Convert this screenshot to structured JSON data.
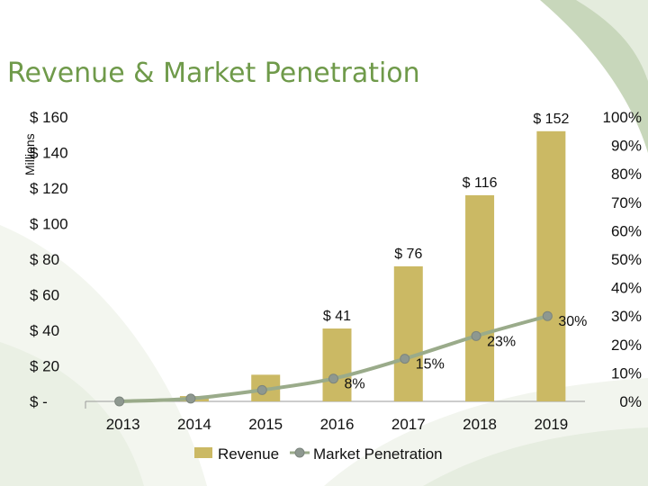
{
  "title": "Revenue & Market Penetration",
  "chart_data": {
    "type": "bar",
    "categories": [
      "2013",
      "2014",
      "2015",
      "2016",
      "2017",
      "2018",
      "2019"
    ],
    "series": [
      {
        "name": "Revenue",
        "type": "bar",
        "axis": "left",
        "color": "#cbb964",
        "values": [
          0,
          3,
          15,
          41,
          76,
          116,
          152
        ],
        "labels": [
          "",
          "",
          "",
          "$ 41",
          "$ 76",
          "$ 116",
          "$ 152"
        ]
      },
      {
        "name": "Market Penetration",
        "type": "line",
        "axis": "right",
        "color": "#9aab8a",
        "marker_color": "#8e9890",
        "values": [
          0,
          1,
          4,
          8,
          15,
          23,
          30
        ],
        "labels": [
          "",
          "",
          "",
          "8%",
          "15%",
          "23%",
          "30%"
        ]
      }
    ],
    "ylabel": "Millions",
    "ylim": [
      0,
      160
    ],
    "y_ticks": [
      "$ -",
      "$ 20",
      "$ 40",
      "$ 60",
      "$ 80",
      "$ 100",
      "$ 120",
      "$ 140",
      "$ 160"
    ],
    "y2lim": [
      0,
      100
    ],
    "y2_ticks": [
      "0%",
      "10%",
      "20%",
      "30%",
      "40%",
      "50%",
      "60%",
      "70%",
      "80%",
      "90%",
      "100%"
    ],
    "legend": [
      "Revenue",
      "Market Penetration"
    ],
    "legend_position": "bottom",
    "grid": false
  }
}
